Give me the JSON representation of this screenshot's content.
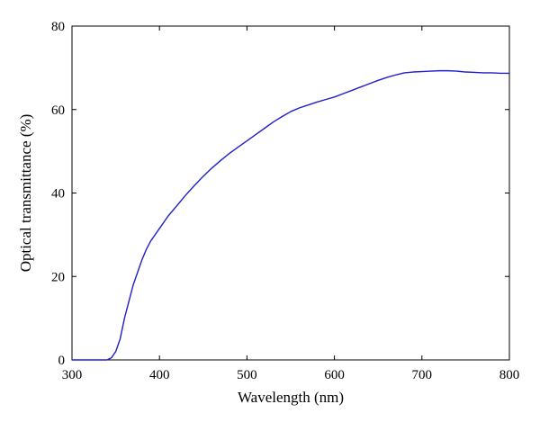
{
  "chart_data": {
    "type": "line",
    "title": "",
    "xlabel": "Wavelength (nm)",
    "ylabel": "Optical transmittance (%)",
    "xlim": [
      300,
      800
    ],
    "ylim": [
      0,
      80
    ],
    "xticks": [
      300,
      400,
      500,
      600,
      700,
      800
    ],
    "yticks": [
      0,
      20,
      40,
      60,
      80
    ],
    "xtick_labels": [
      "300",
      "400",
      "500",
      "600",
      "700",
      "800"
    ],
    "ytick_labels": [
      "0",
      "20",
      "40",
      "60",
      "80"
    ],
    "grid": false,
    "legend": "none",
    "series": [
      {
        "color": "#1f1fc8",
        "x": [
          300,
          340,
          345,
          350,
          355,
          360,
          365,
          370,
          375,
          380,
          385,
          390,
          395,
          400,
          410,
          420,
          430,
          440,
          450,
          460,
          470,
          480,
          490,
          500,
          510,
          520,
          530,
          540,
          550,
          560,
          570,
          580,
          590,
          600,
          610,
          620,
          630,
          640,
          650,
          660,
          670,
          680,
          690,
          700,
          710,
          720,
          730,
          740,
          750,
          760,
          770,
          780,
          790,
          800
        ],
        "y": [
          0,
          0,
          0.5,
          2,
          5,
          10,
          14,
          18,
          21,
          24,
          26.5,
          28.5,
          30,
          31.5,
          34.5,
          37,
          39.5,
          41.8,
          44,
          46,
          47.8,
          49.5,
          51,
          52.5,
          54,
          55.5,
          57,
          58.3,
          59.5,
          60.4,
          61.1,
          61.8,
          62.4,
          63,
          63.8,
          64.6,
          65.4,
          66.2,
          67,
          67.7,
          68.3,
          68.8,
          69,
          69.1,
          69.2,
          69.3,
          69.3,
          69.2,
          69,
          68.9,
          68.8,
          68.8,
          68.7,
          68.7
        ]
      }
    ]
  }
}
